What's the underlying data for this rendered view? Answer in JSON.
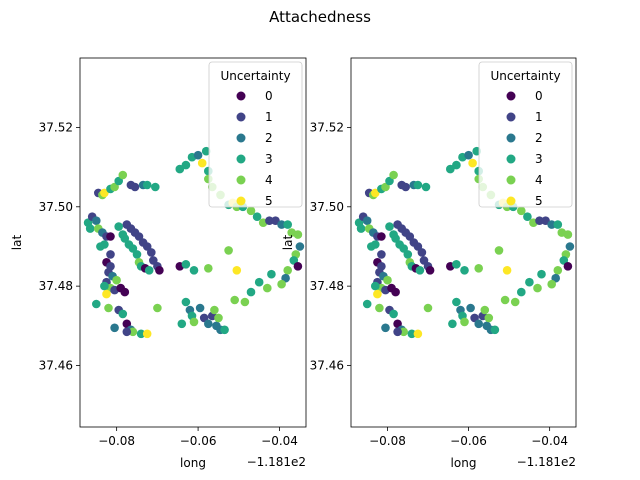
{
  "figure": {
    "suptitle": "Attachedness"
  },
  "chart_data": [
    {
      "type": "scatter",
      "title": "",
      "xlabel": "long",
      "ylabel": "lat",
      "x_offset_label": "−1.181e2",
      "xlim": [
        -0.089,
        -0.0335
      ],
      "ylim": [
        37.4445,
        37.5375
      ],
      "xticks": [
        -0.08,
        -0.06,
        -0.04
      ],
      "xtick_labels": [
        "−0.08",
        "−0.06",
        "−0.04"
      ],
      "yticks": [
        37.46,
        37.48,
        37.5,
        37.52
      ],
      "ytick_labels": [
        "37.46",
        "37.48",
        "37.50",
        "37.52"
      ],
      "grid": false,
      "legend": {
        "title": "Uncertainty",
        "position": "top-right",
        "entries": [
          "0",
          "1",
          "2",
          "3",
          "4",
          "5"
        ]
      },
      "colors": [
        "#440154",
        "#414487",
        "#2a788e",
        "#22a884",
        "#7ad151",
        "#fde725"
      ],
      "points": [
        [
          -0.0845,
          37.5035,
          1
        ],
        [
          -0.0835,
          37.503,
          4
        ],
        [
          -0.083,
          37.5035,
          5
        ],
        [
          -0.0815,
          37.5045,
          3
        ],
        [
          -0.0805,
          37.505,
          4
        ],
        [
          -0.0795,
          37.5065,
          3
        ],
        [
          -0.0785,
          37.508,
          4
        ],
        [
          -0.0765,
          37.5055,
          1
        ],
        [
          -0.0755,
          37.505,
          1
        ],
        [
          -0.0735,
          37.5055,
          2
        ],
        [
          -0.0725,
          37.5055,
          3
        ],
        [
          -0.0705,
          37.505,
          3
        ],
        [
          -0.0645,
          37.5095,
          3
        ],
        [
          -0.063,
          37.5105,
          3
        ],
        [
          -0.0615,
          37.5125,
          3
        ],
        [
          -0.06,
          37.513,
          2
        ],
        [
          -0.059,
          37.511,
          5
        ],
        [
          -0.058,
          37.514,
          3
        ],
        [
          -0.0575,
          37.509,
          3
        ],
        [
          -0.0575,
          37.507,
          4
        ],
        [
          -0.0565,
          37.505,
          4
        ],
        [
          -0.0545,
          37.503,
          4
        ],
        [
          -0.0525,
          37.5005,
          3
        ],
        [
          -0.0515,
          37.501,
          5
        ],
        [
          -0.0505,
          37.5,
          4
        ],
        [
          -0.049,
          37.5,
          3
        ],
        [
          -0.047,
          37.499,
          4
        ],
        [
          -0.0455,
          37.4975,
          3
        ],
        [
          -0.044,
          37.496,
          4
        ],
        [
          -0.0425,
          37.4965,
          1
        ],
        [
          -0.041,
          37.4965,
          1
        ],
        [
          -0.0395,
          37.4955,
          2
        ],
        [
          -0.038,
          37.4955,
          3
        ],
        [
          -0.037,
          37.4935,
          4
        ],
        [
          -0.0355,
          37.493,
          4
        ],
        [
          -0.035,
          37.49,
          2
        ],
        [
          -0.036,
          37.488,
          4
        ],
        [
          -0.0365,
          37.4865,
          3
        ],
        [
          -0.0355,
          37.485,
          0
        ],
        [
          -0.038,
          37.484,
          4
        ],
        [
          -0.0385,
          37.482,
          2
        ],
        [
          -0.0395,
          37.4805,
          4
        ],
        [
          -0.042,
          37.483,
          3
        ],
        [
          -0.043,
          37.4795,
          4
        ],
        [
          -0.045,
          37.481,
          3
        ],
        [
          -0.047,
          37.4785,
          3
        ],
        [
          -0.0485,
          37.476,
          4
        ],
        [
          -0.051,
          37.4765,
          4
        ],
        [
          -0.0505,
          37.484,
          5
        ],
        [
          -0.0525,
          37.489,
          4
        ],
        [
          -0.087,
          37.496,
          3
        ],
        [
          -0.0865,
          37.4945,
          3
        ],
        [
          -0.086,
          37.4975,
          1
        ],
        [
          -0.085,
          37.4965,
          2
        ],
        [
          -0.0845,
          37.4945,
          4
        ],
        [
          -0.0835,
          37.4935,
          2
        ],
        [
          -0.0825,
          37.4925,
          1
        ],
        [
          -0.0815,
          37.4925,
          0
        ],
        [
          -0.083,
          37.4905,
          3
        ],
        [
          -0.0815,
          37.488,
          1
        ],
        [
          -0.084,
          37.49,
          3
        ],
        [
          -0.0825,
          37.486,
          0
        ],
        [
          -0.0815,
          37.485,
          1
        ],
        [
          -0.082,
          37.4835,
          1
        ],
        [
          -0.0825,
          37.481,
          1
        ],
        [
          -0.081,
          37.4825,
          2
        ],
        [
          -0.08,
          37.4815,
          4
        ],
        [
          -0.0815,
          37.4795,
          4
        ],
        [
          -0.083,
          37.48,
          3
        ],
        [
          -0.0805,
          37.479,
          1
        ],
        [
          -0.079,
          37.4795,
          0
        ],
        [
          -0.078,
          37.4785,
          0
        ],
        [
          -0.0825,
          37.478,
          5
        ],
        [
          -0.085,
          37.4755,
          3
        ],
        [
          -0.082,
          37.4745,
          4
        ],
        [
          -0.0795,
          37.474,
          1
        ],
        [
          -0.0785,
          37.473,
          3
        ],
        [
          -0.0775,
          37.4705,
          0
        ],
        [
          -0.0765,
          37.469,
          2
        ],
        [
          -0.076,
          37.4685,
          4
        ],
        [
          -0.074,
          37.468,
          3
        ],
        [
          -0.0725,
          37.468,
          5
        ],
        [
          -0.0805,
          37.4695,
          2
        ],
        [
          -0.0775,
          37.4685,
          1
        ],
        [
          -0.0775,
          37.4955,
          1
        ],
        [
          -0.0765,
          37.4945,
          1
        ],
        [
          -0.0755,
          37.4935,
          1
        ],
        [
          -0.0745,
          37.4925,
          1
        ],
        [
          -0.0735,
          37.491,
          1
        ],
        [
          -0.0725,
          37.49,
          1
        ],
        [
          -0.0715,
          37.4885,
          1
        ],
        [
          -0.071,
          37.4865,
          1
        ],
        [
          -0.07,
          37.485,
          1
        ],
        [
          -0.0695,
          37.484,
          0
        ],
        [
          -0.078,
          37.492,
          3
        ],
        [
          -0.077,
          37.4905,
          3
        ],
        [
          -0.076,
          37.4895,
          3
        ],
        [
          -0.075,
          37.488,
          3
        ],
        [
          -0.0745,
          37.486,
          4
        ],
        [
          -0.074,
          37.485,
          3
        ],
        [
          -0.0795,
          37.495,
          3
        ],
        [
          -0.0785,
          37.493,
          3
        ],
        [
          -0.073,
          37.4845,
          0
        ],
        [
          -0.072,
          37.484,
          3
        ],
        [
          -0.0645,
          37.485,
          0
        ],
        [
          -0.063,
          37.4855,
          3
        ],
        [
          -0.061,
          37.484,
          3
        ],
        [
          -0.0575,
          37.4845,
          4
        ],
        [
          -0.07,
          37.4745,
          4
        ],
        [
          -0.063,
          37.476,
          3
        ],
        [
          -0.062,
          37.474,
          2
        ],
        [
          -0.0615,
          37.4725,
          3
        ],
        [
          -0.061,
          37.471,
          4
        ],
        [
          -0.0595,
          37.4745,
          2
        ],
        [
          -0.0585,
          37.472,
          1
        ],
        [
          -0.0575,
          37.4705,
          2
        ],
        [
          -0.0565,
          37.4725,
          1
        ],
        [
          -0.0555,
          37.47,
          2
        ],
        [
          -0.055,
          37.472,
          4
        ],
        [
          -0.0545,
          37.469,
          2
        ],
        [
          -0.0535,
          37.469,
          3
        ],
        [
          -0.056,
          37.474,
          4
        ],
        [
          -0.064,
          37.4705,
          3
        ]
      ]
    },
    {
      "type": "scatter",
      "title": "",
      "xlabel": "long",
      "ylabel": "lat",
      "x_offset_label": "−1.181e2",
      "xlim": [
        -0.089,
        -0.0335
      ],
      "ylim": [
        37.4445,
        37.5375
      ],
      "xticks": [
        -0.08,
        -0.06,
        -0.04
      ],
      "xtick_labels": [
        "−0.08",
        "−0.06",
        "−0.04"
      ],
      "yticks": [
        37.46,
        37.48,
        37.5,
        37.52
      ],
      "ytick_labels": [
        "37.46",
        "37.48",
        "37.50",
        "37.52"
      ],
      "grid": false,
      "legend": {
        "title": "Uncertainty",
        "position": "top-right",
        "entries": [
          "0",
          "1",
          "2",
          "3",
          "4",
          "5"
        ]
      },
      "colors": [
        "#440154",
        "#414487",
        "#2a788e",
        "#22a884",
        "#7ad151",
        "#fde725"
      ],
      "points": [
        [
          -0.0845,
          37.5035,
          1
        ],
        [
          -0.0835,
          37.503,
          4
        ],
        [
          -0.083,
          37.5035,
          5
        ],
        [
          -0.0815,
          37.5045,
          3
        ],
        [
          -0.0805,
          37.505,
          4
        ],
        [
          -0.0795,
          37.5065,
          3
        ],
        [
          -0.0785,
          37.508,
          4
        ],
        [
          -0.0765,
          37.5055,
          1
        ],
        [
          -0.0755,
          37.505,
          1
        ],
        [
          -0.0735,
          37.5055,
          2
        ],
        [
          -0.0725,
          37.5055,
          3
        ],
        [
          -0.0705,
          37.505,
          3
        ],
        [
          -0.0645,
          37.5095,
          3
        ],
        [
          -0.063,
          37.5105,
          3
        ],
        [
          -0.0615,
          37.5125,
          3
        ],
        [
          -0.06,
          37.513,
          2
        ],
        [
          -0.059,
          37.511,
          5
        ],
        [
          -0.058,
          37.514,
          3
        ],
        [
          -0.0575,
          37.509,
          3
        ],
        [
          -0.0575,
          37.507,
          4
        ],
        [
          -0.0565,
          37.505,
          4
        ],
        [
          -0.0545,
          37.503,
          4
        ],
        [
          -0.0525,
          37.5005,
          3
        ],
        [
          -0.0515,
          37.501,
          5
        ],
        [
          -0.0505,
          37.5,
          4
        ],
        [
          -0.049,
          37.5,
          3
        ],
        [
          -0.047,
          37.499,
          4
        ],
        [
          -0.0455,
          37.4975,
          3
        ],
        [
          -0.044,
          37.496,
          4
        ],
        [
          -0.0425,
          37.4965,
          1
        ],
        [
          -0.041,
          37.4965,
          1
        ],
        [
          -0.0395,
          37.4955,
          2
        ],
        [
          -0.038,
          37.4955,
          3
        ],
        [
          -0.037,
          37.4935,
          4
        ],
        [
          -0.0355,
          37.493,
          4
        ],
        [
          -0.035,
          37.49,
          2
        ],
        [
          -0.036,
          37.488,
          4
        ],
        [
          -0.0365,
          37.4865,
          3
        ],
        [
          -0.0355,
          37.485,
          0
        ],
        [
          -0.038,
          37.484,
          4
        ],
        [
          -0.0385,
          37.482,
          2
        ],
        [
          -0.0395,
          37.4805,
          4
        ],
        [
          -0.042,
          37.483,
          3
        ],
        [
          -0.043,
          37.4795,
          4
        ],
        [
          -0.045,
          37.481,
          3
        ],
        [
          -0.047,
          37.4785,
          3
        ],
        [
          -0.0485,
          37.476,
          4
        ],
        [
          -0.051,
          37.4765,
          4
        ],
        [
          -0.0505,
          37.484,
          5
        ],
        [
          -0.0525,
          37.489,
          4
        ],
        [
          -0.087,
          37.496,
          3
        ],
        [
          -0.0865,
          37.4945,
          3
        ],
        [
          -0.086,
          37.4975,
          1
        ],
        [
          -0.085,
          37.4965,
          2
        ],
        [
          -0.0845,
          37.4945,
          4
        ],
        [
          -0.0835,
          37.4935,
          2
        ],
        [
          -0.0825,
          37.4925,
          1
        ],
        [
          -0.0815,
          37.4925,
          0
        ],
        [
          -0.083,
          37.4905,
          3
        ],
        [
          -0.0815,
          37.488,
          1
        ],
        [
          -0.084,
          37.49,
          3
        ],
        [
          -0.0825,
          37.486,
          0
        ],
        [
          -0.0815,
          37.485,
          1
        ],
        [
          -0.082,
          37.4835,
          1
        ],
        [
          -0.0825,
          37.481,
          1
        ],
        [
          -0.081,
          37.4825,
          2
        ],
        [
          -0.08,
          37.4815,
          4
        ],
        [
          -0.0815,
          37.4795,
          4
        ],
        [
          -0.083,
          37.48,
          3
        ],
        [
          -0.0805,
          37.479,
          1
        ],
        [
          -0.079,
          37.4795,
          0
        ],
        [
          -0.078,
          37.4785,
          0
        ],
        [
          -0.0825,
          37.478,
          5
        ],
        [
          -0.085,
          37.4755,
          3
        ],
        [
          -0.082,
          37.4745,
          4
        ],
        [
          -0.0795,
          37.474,
          1
        ],
        [
          -0.0785,
          37.473,
          3
        ],
        [
          -0.0775,
          37.4705,
          0
        ],
        [
          -0.0765,
          37.469,
          2
        ],
        [
          -0.076,
          37.4685,
          4
        ],
        [
          -0.074,
          37.468,
          3
        ],
        [
          -0.0725,
          37.468,
          5
        ],
        [
          -0.0805,
          37.4695,
          2
        ],
        [
          -0.0775,
          37.4685,
          1
        ],
        [
          -0.0775,
          37.4955,
          1
        ],
        [
          -0.0765,
          37.4945,
          1
        ],
        [
          -0.0755,
          37.4935,
          1
        ],
        [
          -0.0745,
          37.4925,
          1
        ],
        [
          -0.0735,
          37.491,
          1
        ],
        [
          -0.0725,
          37.49,
          1
        ],
        [
          -0.0715,
          37.4885,
          1
        ],
        [
          -0.071,
          37.4865,
          1
        ],
        [
          -0.07,
          37.485,
          1
        ],
        [
          -0.0695,
          37.484,
          0
        ],
        [
          -0.078,
          37.492,
          3
        ],
        [
          -0.077,
          37.4905,
          3
        ],
        [
          -0.076,
          37.4895,
          3
        ],
        [
          -0.075,
          37.488,
          3
        ],
        [
          -0.0745,
          37.486,
          4
        ],
        [
          -0.074,
          37.485,
          3
        ],
        [
          -0.0795,
          37.495,
          3
        ],
        [
          -0.0785,
          37.493,
          3
        ],
        [
          -0.073,
          37.4845,
          0
        ],
        [
          -0.072,
          37.484,
          3
        ],
        [
          -0.0645,
          37.485,
          0
        ],
        [
          -0.063,
          37.4855,
          3
        ],
        [
          -0.061,
          37.484,
          3
        ],
        [
          -0.0575,
          37.4845,
          4
        ],
        [
          -0.07,
          37.4745,
          4
        ],
        [
          -0.063,
          37.476,
          3
        ],
        [
          -0.062,
          37.474,
          2
        ],
        [
          -0.0615,
          37.4725,
          3
        ],
        [
          -0.061,
          37.471,
          4
        ],
        [
          -0.0595,
          37.4745,
          2
        ],
        [
          -0.0585,
          37.472,
          1
        ],
        [
          -0.0575,
          37.4705,
          2
        ],
        [
          -0.0565,
          37.4725,
          1
        ],
        [
          -0.0555,
          37.47,
          2
        ],
        [
          -0.055,
          37.472,
          4
        ],
        [
          -0.0545,
          37.469,
          2
        ],
        [
          -0.0535,
          37.469,
          3
        ],
        [
          -0.056,
          37.474,
          4
        ],
        [
          -0.064,
          37.4705,
          3
        ]
      ]
    }
  ]
}
